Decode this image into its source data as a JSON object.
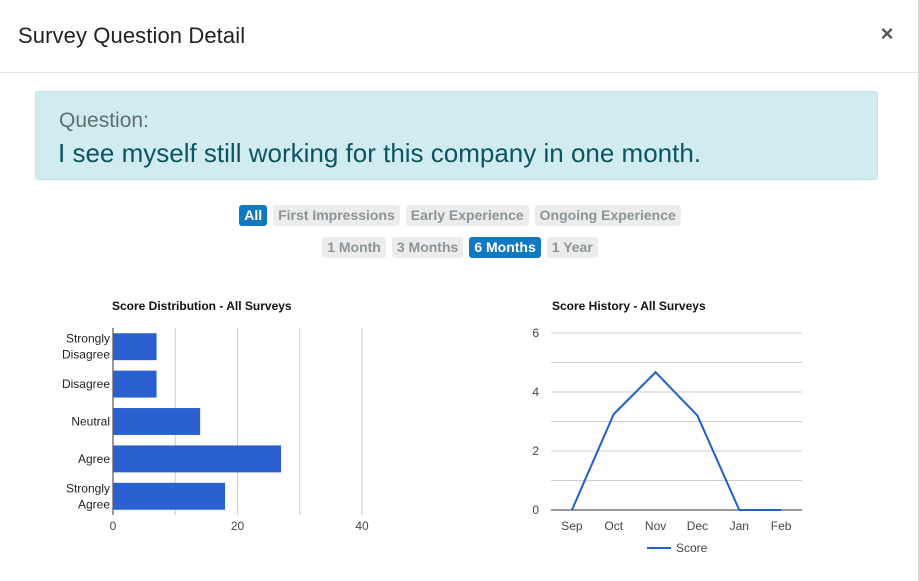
{
  "modal": {
    "title": "Survey Question Detail",
    "close_label": "×"
  },
  "question": {
    "label": "Question:",
    "text": "I see myself still working for this company in one month."
  },
  "filters": {
    "categories": [
      {
        "label": "All",
        "active": true
      },
      {
        "label": "First Impressions",
        "active": false
      },
      {
        "label": "Early Experience",
        "active": false
      },
      {
        "label": "Ongoing Experience",
        "active": false
      }
    ],
    "ranges": [
      {
        "label": "1 Month",
        "active": false
      },
      {
        "label": "3 Months",
        "active": false
      },
      {
        "label": "6 Months",
        "active": true
      },
      {
        "label": "1 Year",
        "active": false
      }
    ]
  },
  "colors": {
    "bar": "#2a60cf",
    "line": "#1f5fcc",
    "active_pill": "#1179bf",
    "question_bg": "#d1ecf1",
    "question_text": "#0c5460"
  },
  "chart_data": [
    {
      "type": "bar",
      "orientation": "horizontal",
      "title": "Score Distribution - All Surveys",
      "categories": [
        [
          "Strongly",
          "Disagree"
        ],
        [
          "Disagree"
        ],
        [
          "Neutral"
        ],
        [
          "Agree"
        ],
        [
          "Strongly",
          "Agree"
        ]
      ],
      "values": [
        7,
        7,
        14,
        27,
        18
      ],
      "xlim": [
        0,
        40
      ],
      "xticks": [
        0,
        20,
        40
      ],
      "grid": true
    },
    {
      "type": "line",
      "title": "Score History - All Surveys",
      "x": [
        "Sep",
        "Oct",
        "Nov",
        "Dec",
        "Jan",
        "Feb"
      ],
      "series": [
        {
          "name": "Score",
          "values": [
            0,
            3.25,
            4.67,
            3.2,
            0,
            0
          ]
        }
      ],
      "ylim": [
        0,
        6
      ],
      "yticks": [
        0,
        2,
        4,
        6
      ],
      "grid": true,
      "legend": "bottom"
    }
  ]
}
